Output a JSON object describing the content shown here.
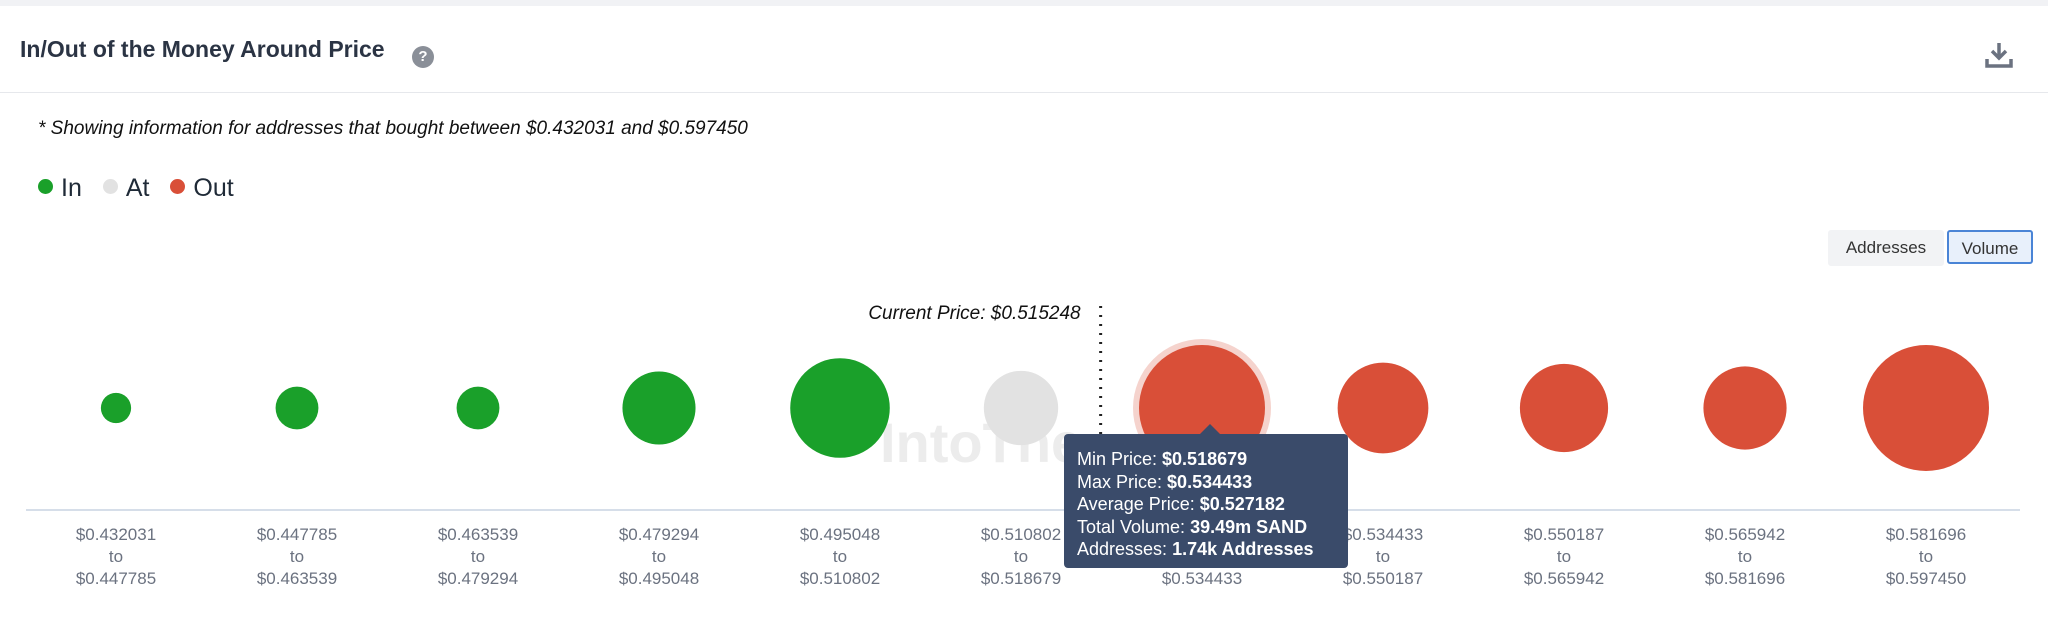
{
  "header": {
    "title": "In/Out of the Money Around Price",
    "help_icon": "question-circle-icon",
    "download_icon": "download-icon"
  },
  "note": "* Showing information for addresses that bought between $0.432031 and $0.597450",
  "legend": [
    {
      "label": "In",
      "color": "#1aa02a"
    },
    {
      "label": "At",
      "color": "#e2e2e2"
    },
    {
      "label": "Out",
      "color": "#d94f38"
    }
  ],
  "toggles": {
    "addresses": "Addresses",
    "volume": "Volume",
    "selected": "Volume"
  },
  "watermark": "IntoThe",
  "chart_data": {
    "type": "scatter",
    "current_price_label": "Current Price: $0.515248",
    "current_price": 0.515248,
    "buckets": [
      {
        "from": "$0.432031",
        "to_word": "to",
        "to": "$0.447785",
        "status": "In",
        "size": 0.24
      },
      {
        "from": "$0.447785",
        "to_word": "to",
        "to": "$0.463539",
        "status": "In",
        "size": 0.34
      },
      {
        "from": "$0.463539",
        "to_word": "to",
        "to": "$0.479294",
        "status": "In",
        "size": 0.34
      },
      {
        "from": "$0.479294",
        "to_word": "to",
        "to": "$0.495048",
        "status": "In",
        "size": 0.58
      },
      {
        "from": "$0.495048",
        "to_word": "to",
        "to": "$0.510802",
        "status": "In",
        "size": 0.79
      },
      {
        "from": "$0.510802",
        "to_word": "to",
        "to": "$0.518679",
        "status": "At",
        "size": 0.59
      },
      {
        "from": "$0.518679",
        "to_word": "to",
        "to": "$0.534433",
        "status": "Out",
        "size": 1.0,
        "highlighted": true
      },
      {
        "from": "$0.534433",
        "to_word": "to",
        "to": "$0.550187",
        "status": "Out",
        "size": 0.72
      },
      {
        "from": "$0.550187",
        "to_word": "to",
        "to": "$0.565942",
        "status": "Out",
        "size": 0.7
      },
      {
        "from": "$0.565942",
        "to_word": "to",
        "to": "$0.581696",
        "status": "Out",
        "size": 0.66
      },
      {
        "from": "$0.581696",
        "to_word": "to",
        "to": "$0.597450",
        "status": "Out",
        "size": 1.0
      }
    ]
  },
  "tooltip": {
    "min_label": "Min Price:",
    "min_value": "$0.518679",
    "max_label": "Max Price:",
    "max_value": "$0.534433",
    "avg_label": "Average Price:",
    "avg_value": "$0.527182",
    "vol_label": "Total Volume:",
    "vol_value": "39.49m SAND",
    "addr_label": "Addresses:",
    "addr_value": "1.74k Addresses"
  }
}
